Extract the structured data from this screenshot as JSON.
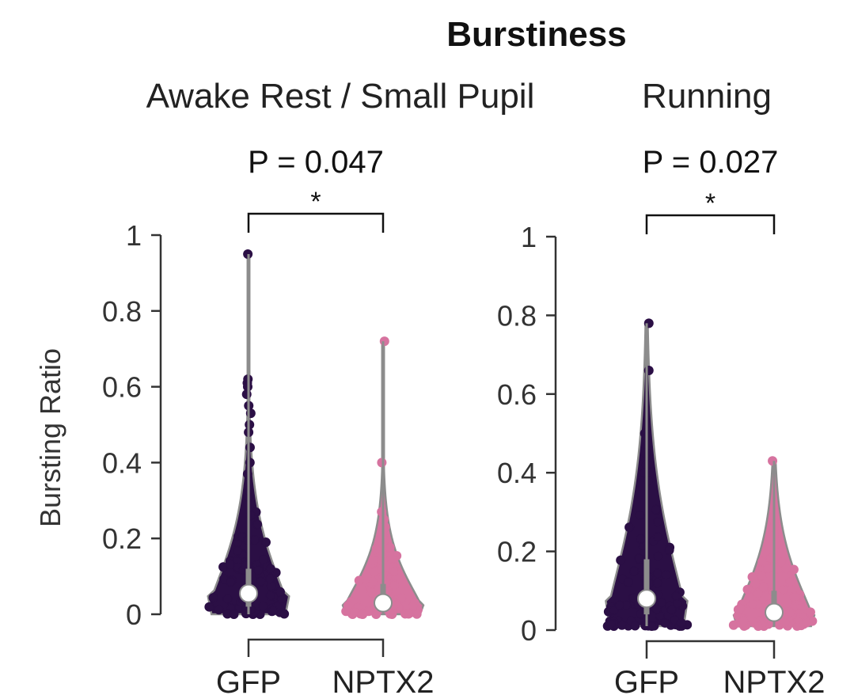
{
  "figure": {
    "title": "Burstiness",
    "ylabel": "Bursting Ratio",
    "colors": {
      "GFP": "#2b0f45",
      "NPTX2": "#d6739f",
      "violin_outline": "#8c8c8c",
      "median": "#ffffff"
    }
  },
  "chart_data": [
    {
      "type": "violin",
      "title": "Awake Rest / Small Pupil",
      "ylabel": "Bursting Ratio",
      "ylim": [
        0,
        1
      ],
      "yticks": [
        0,
        0.2,
        0.4,
        0.6,
        0.8,
        1
      ],
      "ytick_labels": [
        "0",
        "0.2",
        "0.4",
        "0.6",
        "0.8",
        "1"
      ],
      "categories": [
        "GFP",
        "NPTX2"
      ],
      "comparison": {
        "p_label": "P = 0.047",
        "stars": "*"
      },
      "series": [
        {
          "name": "GFP",
          "median": 0.055,
          "q1": 0.02,
          "q3": 0.12,
          "whisker_low": 0.0,
          "whisker_high": 0.33,
          "max": 0.95,
          "outliers": [
            0.95,
            0.62,
            0.61,
            0.6,
            0.58,
            0.55,
            0.53,
            0.5,
            0.48,
            0.44,
            0.4,
            0.37,
            0.34
          ]
        },
        {
          "name": "NPTX2",
          "median": 0.03,
          "q1": 0.01,
          "q3": 0.08,
          "whisker_low": 0.0,
          "whisker_high": 0.18,
          "max": 0.72,
          "outliers": [
            0.72,
            0.4,
            0.27,
            0.25,
            0.23,
            0.21
          ]
        }
      ]
    },
    {
      "type": "violin",
      "title": "Running",
      "ylim": [
        0,
        1
      ],
      "yticks": [
        0,
        0.2,
        0.4,
        0.6,
        0.8,
        1
      ],
      "ytick_labels": [
        "0",
        "0.2",
        "0.4",
        "0.6",
        "0.8",
        "1"
      ],
      "categories": [
        "GFP",
        "NPTX2"
      ],
      "comparison": {
        "p_label": "P = 0.027",
        "stars": "*"
      },
      "series": [
        {
          "name": "GFP",
          "median": 0.08,
          "q1": 0.04,
          "q3": 0.18,
          "whisker_low": 0.01,
          "whisker_high": 0.32,
          "max": 0.78,
          "outliers": [
            0.78,
            0.66,
            0.5,
            0.49,
            0.47,
            0.45,
            0.42,
            0.4,
            0.38
          ]
        },
        {
          "name": "NPTX2",
          "median": 0.045,
          "q1": 0.03,
          "q3": 0.1,
          "whisker_low": 0.01,
          "whisker_high": 0.2,
          "max": 0.43,
          "outliers": [
            0.43,
            0.27,
            0.26,
            0.24,
            0.22
          ]
        }
      ]
    }
  ]
}
